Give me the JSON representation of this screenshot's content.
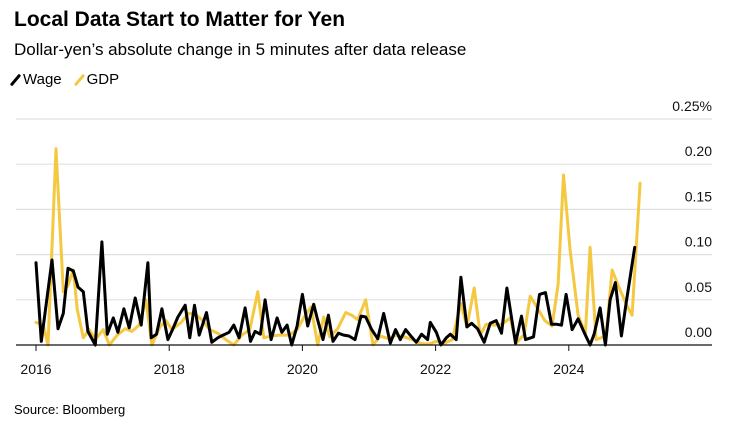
{
  "chart_data": {
    "type": "line",
    "title": "Local Data Start to Matter for Yen",
    "subtitle": "Dollar-yen’s absolute change in 5 minutes after data release",
    "xlabel": "",
    "ylabel": "",
    "source": "Source: Bloomberg",
    "xlim": [
      2016.0,
      2026.3
    ],
    "ylim": [
      0,
      0.25
    ],
    "y_ticks": [
      0.0,
      0.05,
      0.1,
      0.15,
      0.2,
      0.25
    ],
    "y_tick_labels": [
      "0.00",
      "0.05",
      "0.10",
      "0.15",
      "0.20",
      "0.25%"
    ],
    "x_ticks": [
      2016,
      2018,
      2020,
      2022,
      2024
    ],
    "x_tick_labels": [
      "2016",
      "2018",
      "2020",
      "2022",
      "2024"
    ],
    "grid": true,
    "legend_position": "top-left",
    "colors": {
      "Wage": "#000000",
      "GDP": "#f5c842",
      "grid": "#e0e0e0"
    },
    "series": [
      {
        "name": "Wage",
        "x": [
          2016.0,
          2016.08,
          2016.24,
          2016.33,
          2016.41,
          2016.48,
          2016.56,
          2016.63,
          2016.71,
          2016.78,
          2016.89,
          2016.99,
          2017.07,
          2017.16,
          2017.23,
          2017.32,
          2017.4,
          2017.49,
          2017.58,
          2017.68,
          2017.73,
          2017.81,
          2017.89,
          2017.98,
          2018.05,
          2018.13,
          2018.24,
          2018.31,
          2018.38,
          2018.45,
          2018.56,
          2018.64,
          2018.73,
          2018.81,
          2018.9,
          2018.97,
          2019.05,
          2019.14,
          2019.22,
          2019.29,
          2019.37,
          2019.44,
          2019.53,
          2019.62,
          2019.69,
          2019.77,
          2019.84,
          2019.92,
          2020.0,
          2020.08,
          2020.17,
          2020.22,
          2020.31,
          2020.39,
          2020.46,
          2020.54,
          2020.62,
          2020.7,
          2020.79,
          2020.88,
          2020.95,
          2021.04,
          2021.13,
          2021.22,
          2021.32,
          2021.4,
          2021.47,
          2021.55,
          2021.64,
          2021.71,
          2021.79,
          2021.88,
          2021.92,
          2022.01,
          2022.08,
          2022.16,
          2022.22,
          2022.31,
          2022.38,
          2022.47,
          2022.54,
          2022.63,
          2022.73,
          2022.82,
          2022.91,
          2022.99,
          2023.07,
          2023.2,
          2023.29,
          2023.35,
          2023.47,
          2023.56,
          2023.65,
          2023.74,
          2023.81,
          2023.89,
          2023.96,
          2024.05,
          2024.14,
          2024.23,
          2024.32,
          2024.38,
          2024.47,
          2024.55,
          2024.62,
          2024.7,
          2024.79,
          2024.86,
          2024.99
        ],
        "values": [
          0.091,
          0.004,
          0.094,
          0.018,
          0.035,
          0.085,
          0.082,
          0.064,
          0.059,
          0.015,
          0.0,
          0.114,
          0.012,
          0.03,
          0.014,
          0.04,
          0.019,
          0.052,
          0.022,
          0.091,
          0.008,
          0.012,
          0.04,
          0.006,
          0.017,
          0.031,
          0.044,
          0.008,
          0.044,
          0.011,
          0.036,
          0.003,
          0.008,
          0.011,
          0.014,
          0.022,
          0.008,
          0.041,
          0.004,
          0.015,
          0.012,
          0.05,
          0.006,
          0.03,
          0.014,
          0.022,
          0.0,
          0.021,
          0.056,
          0.021,
          0.045,
          0.03,
          0.006,
          0.033,
          0.004,
          0.013,
          0.011,
          0.01,
          0.006,
          0.032,
          0.031,
          0.017,
          0.007,
          0.035,
          0.002,
          0.017,
          0.006,
          0.017,
          0.009,
          0.003,
          0.012,
          0.006,
          0.025,
          0.014,
          0.0,
          0.008,
          0.012,
          0.006,
          0.075,
          0.02,
          0.024,
          0.018,
          0.003,
          0.024,
          0.027,
          0.013,
          0.063,
          0.002,
          0.032,
          0.006,
          0.009,
          0.056,
          0.058,
          0.023,
          0.023,
          0.022,
          0.056,
          0.017,
          0.029,
          0.014,
          0.0,
          0.012,
          0.041,
          0.0,
          0.05,
          0.069,
          0.01,
          0.046,
          0.108
        ]
      },
      {
        "name": "GDP",
        "x": [
          2016.0,
          2016.11,
          2016.18,
          2016.3,
          2016.41,
          2016.48,
          2016.56,
          2016.62,
          2016.71,
          2016.8,
          2016.89,
          2017.01,
          2017.1,
          2017.22,
          2017.34,
          2017.44,
          2017.55,
          2017.65,
          2017.74,
          2017.86,
          2017.95,
          2018.04,
          2018.18,
          2018.29,
          2018.38,
          2018.49,
          2018.61,
          2018.73,
          2018.85,
          2018.97,
          2019.09,
          2019.21,
          2019.33,
          2019.42,
          2019.53,
          2019.66,
          2019.8,
          2019.92,
          2020.02,
          2020.13,
          2020.23,
          2020.32,
          2020.41,
          2020.53,
          2020.65,
          2020.74,
          2020.83,
          2020.95,
          2021.06,
          2021.17,
          2021.29,
          2021.41,
          2021.53,
          2021.65,
          2021.77,
          2021.89,
          2022.01,
          2022.13,
          2022.25,
          2022.38,
          2022.47,
          2022.58,
          2022.67,
          2022.76,
          2022.88,
          2023.0,
          2023.12,
          2023.21,
          2023.33,
          2023.42,
          2023.52,
          2023.64,
          2023.75,
          2023.84,
          2023.92,
          2024.02,
          2024.14,
          2024.25,
          2024.32,
          2024.41,
          2024.56,
          2024.65,
          2024.77,
          2024.87,
          2024.95,
          2025.07
        ],
        "values": [
          0.025,
          0.022,
          0.0,
          0.217,
          0.059,
          0.066,
          0.083,
          0.039,
          0.008,
          0.017,
          0.006,
          0.017,
          0.0,
          0.011,
          0.018,
          0.015,
          0.022,
          0.05,
          0.0,
          0.02,
          0.027,
          0.017,
          0.025,
          0.035,
          0.035,
          0.028,
          0.017,
          0.013,
          0.006,
          0.0,
          0.011,
          0.017,
          0.059,
          0.008,
          0.01,
          0.011,
          0.011,
          0.017,
          0.03,
          0.042,
          0.0,
          0.031,
          0.009,
          0.018,
          0.036,
          0.033,
          0.028,
          0.05,
          0.0,
          0.01,
          0.007,
          0.011,
          0.009,
          0.006,
          0.002,
          0.001,
          0.004,
          0.002,
          0.006,
          0.046,
          0.02,
          0.063,
          0.011,
          0.023,
          0.022,
          0.023,
          0.03,
          0.002,
          0.012,
          0.054,
          0.042,
          0.027,
          0.021,
          0.067,
          0.188,
          0.105,
          0.033,
          0.013,
          0.108,
          0.006,
          0.01,
          0.083,
          0.061,
          0.044,
          0.033,
          0.179
        ]
      }
    ]
  }
}
